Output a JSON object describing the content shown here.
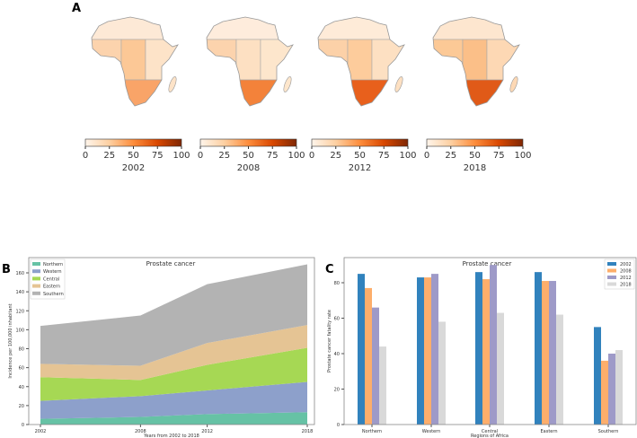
{
  "panel_labels": {
    "a": "A",
    "b": "B",
    "c": "C"
  },
  "maps": [
    {
      "year": "2002",
      "colors": {
        "northern": "#fde9d6",
        "western": "#fcd3ad",
        "central": "#fcc896",
        "eastern": "#fde3c8",
        "southern": "#f9a468"
      }
    },
    {
      "year": "2008",
      "colors": {
        "northern": "#feecdc",
        "western": "#fcd3ad",
        "central": "#fde0c2",
        "eastern": "#fde6cc",
        "southern": "#f3823a"
      }
    },
    {
      "year": "2012",
      "colors": {
        "northern": "#feebd8",
        "western": "#fcd1a8",
        "central": "#fdcc9c",
        "eastern": "#fde0c2",
        "southern": "#e8601c"
      }
    },
    {
      "year": "2018",
      "colors": {
        "northern": "#fde6cf",
        "western": "#fcc996",
        "central": "#fbbf88",
        "eastern": "#fdd8b4",
        "southern": "#e05a18"
      }
    }
  ],
  "colorbar_ticks": [
    "0",
    "25",
    "50",
    "75",
    "100"
  ],
  "chart_data": [
    {
      "type": "area",
      "stacked": true,
      "title": "Prostate cancer",
      "xlabel": "Years from 2002 to 2018",
      "ylabel": "Incidence per 100,000 inhabitant",
      "x": [
        2002,
        2008,
        2012,
        2018
      ],
      "xticks": [
        "2002",
        "2008",
        "2012",
        "2018"
      ],
      "yticks": [
        "0",
        "20",
        "40",
        "60",
        "80",
        "100",
        "120",
        "140",
        "160"
      ],
      "ylim": [
        0,
        175
      ],
      "legend": "top-left",
      "series": [
        {
          "name": "Northern",
          "color": "#66c2a5",
          "values": [
            6,
            8,
            11,
            13
          ]
        },
        {
          "name": "Western",
          "color": "#8da0cb",
          "values": [
            19,
            22,
            25,
            32
          ]
        },
        {
          "name": "Central",
          "color": "#a6d854",
          "values": [
            25,
            17,
            27,
            36
          ]
        },
        {
          "name": "Eastern",
          "color": "#e5c494",
          "values": [
            14,
            15,
            23,
            24
          ]
        },
        {
          "name": "Southern",
          "color": "#b3b3b3",
          "values": [
            40,
            53,
            62,
            64
          ]
        }
      ]
    },
    {
      "type": "bar",
      "title": "Prostate cancer",
      "xlabel": "Regions of Africa",
      "ylabel": "Prostate cancer fatality rate",
      "categories": [
        "Northern",
        "Western",
        "Central",
        "Eastern",
        "Southern"
      ],
      "yticks": [
        "0",
        "20",
        "40",
        "60",
        "80"
      ],
      "ylim": [
        0,
        93
      ],
      "legend": "top-right",
      "series": [
        {
          "name": "2002",
          "color": "#3182bd",
          "values": [
            85,
            83,
            86,
            86,
            55
          ]
        },
        {
          "name": "2008",
          "color": "#fdae6b",
          "values": [
            77,
            83,
            82,
            81,
            36
          ]
        },
        {
          "name": "2012",
          "color": "#9e9ac8",
          "values": [
            66,
            85,
            90,
            81,
            40
          ]
        },
        {
          "name": "2018",
          "color": "#d9d9d9",
          "values": [
            44,
            58,
            63,
            62,
            42
          ]
        }
      ]
    }
  ]
}
